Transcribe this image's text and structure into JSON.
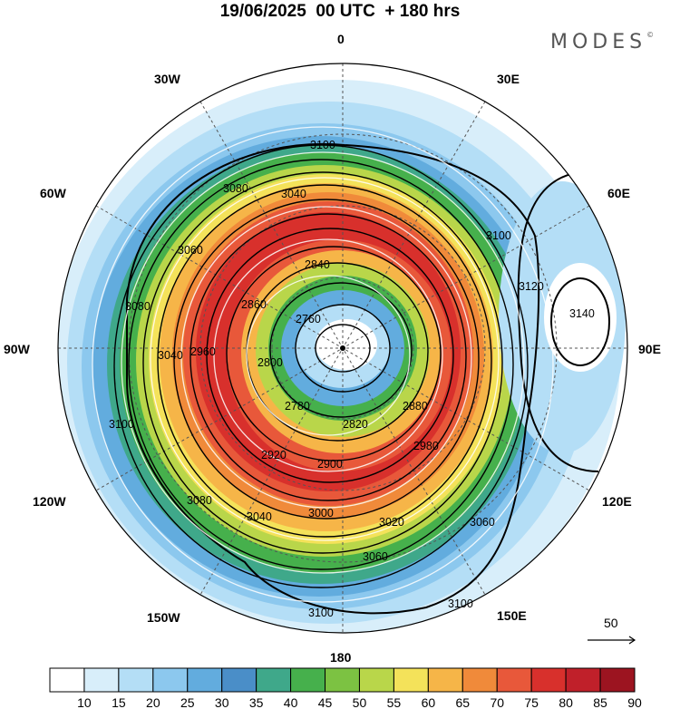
{
  "title": "19/06/2025  00 UTC  + 180 hrs",
  "brand": "MODES",
  "brand_mark": "©",
  "longitude_labels": [
    "0",
    "30E",
    "60E",
    "90E",
    "120E",
    "150E",
    "180",
    "150W",
    "120W",
    "90W",
    "60W",
    "30W"
  ],
  "contour_labels": [
    "3100",
    "3080",
    "3040",
    "3060",
    "2760",
    "2780",
    "2800",
    "2820",
    "2840",
    "2860",
    "2880",
    "2900",
    "2920",
    "2960",
    "2980",
    "3000",
    "3020",
    "3120",
    "3140"
  ],
  "wind_reference": {
    "label": "50"
  },
  "colorbar": {
    "labels": [
      "10",
      "15",
      "20",
      "25",
      "30",
      "35",
      "40",
      "45",
      "50",
      "55",
      "60",
      "65",
      "70",
      "75",
      "80",
      "85",
      "90"
    ],
    "colors": [
      "#ffffff",
      "#d8eefa",
      "#b4def6",
      "#8cc8ee",
      "#62acde",
      "#4a8ec8",
      "#3fa88a",
      "#46b04c",
      "#7cc242",
      "#b9d64a",
      "#f4e25a",
      "#f6b548",
      "#f08a3a",
      "#e8583a",
      "#d8302c",
      "#c0202a",
      "#9c1420"
    ]
  }
}
